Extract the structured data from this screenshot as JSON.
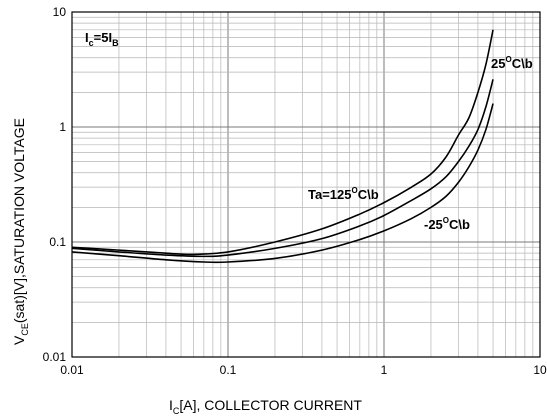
{
  "chart_data": {
    "type": "line",
    "x_scale": "log",
    "y_scale": "log",
    "xlim": [
      0.01,
      10
    ],
    "ylim": [
      0.01,
      10
    ],
    "grid": true,
    "x_ticks": [
      "0.01",
      "0.1",
      "1",
      "10"
    ],
    "y_ticks": [
      "0.01",
      "0.1",
      "1",
      "10"
    ],
    "xlabel": {
      "main": "I",
      "sub": "C",
      "rest": "[A], COLLECTOR CURRENT"
    },
    "ylabel": {
      "main": "V",
      "sub": "CE",
      "rest": "(sat)[V],SATURATION VOLTAGE"
    },
    "condition": {
      "a": "I",
      "a_sub": "c",
      "mid": "=5I",
      "b_sub": "B"
    },
    "series": [
      {
        "name": "Ta=125°C",
        "label": {
          "pre": "Ta=125",
          "sup": "O",
          "post": "C\\b"
        },
        "x": [
          0.01,
          0.02,
          0.04,
          0.06,
          0.1,
          0.2,
          0.4,
          0.7,
          1.0,
          1.5,
          2.0,
          2.5,
          3.0,
          3.5,
          4.0,
          4.5,
          5.0
        ],
        "y": [
          0.09,
          0.085,
          0.08,
          0.078,
          0.082,
          0.1,
          0.13,
          0.175,
          0.22,
          0.3,
          0.39,
          0.55,
          0.85,
          1.2,
          2.0,
          3.5,
          7.0
        ]
      },
      {
        "name": "25°C",
        "label": {
          "pre": "25",
          "sup": "O",
          "post": "C\\b"
        },
        "x": [
          0.01,
          0.02,
          0.04,
          0.07,
          0.1,
          0.2,
          0.4,
          0.7,
          1.0,
          1.5,
          2.0,
          2.5,
          3.0,
          3.5,
          4.0,
          4.5,
          5.0
        ],
        "y": [
          0.088,
          0.082,
          0.077,
          0.075,
          0.077,
          0.088,
          0.107,
          0.138,
          0.17,
          0.23,
          0.29,
          0.37,
          0.5,
          0.68,
          0.95,
          1.5,
          2.6
        ]
      },
      {
        "name": "-25°C",
        "label": {
          "pre": "-25",
          "sup": "O",
          "post": "C\\b"
        },
        "x": [
          0.01,
          0.02,
          0.04,
          0.07,
          0.1,
          0.2,
          0.4,
          0.7,
          1.0,
          1.5,
          2.0,
          2.5,
          3.0,
          3.5,
          4.0,
          4.5,
          5.0
        ],
        "y": [
          0.082,
          0.076,
          0.07,
          0.067,
          0.067,
          0.072,
          0.085,
          0.105,
          0.125,
          0.16,
          0.2,
          0.25,
          0.33,
          0.45,
          0.63,
          0.95,
          1.6
        ]
      }
    ]
  }
}
